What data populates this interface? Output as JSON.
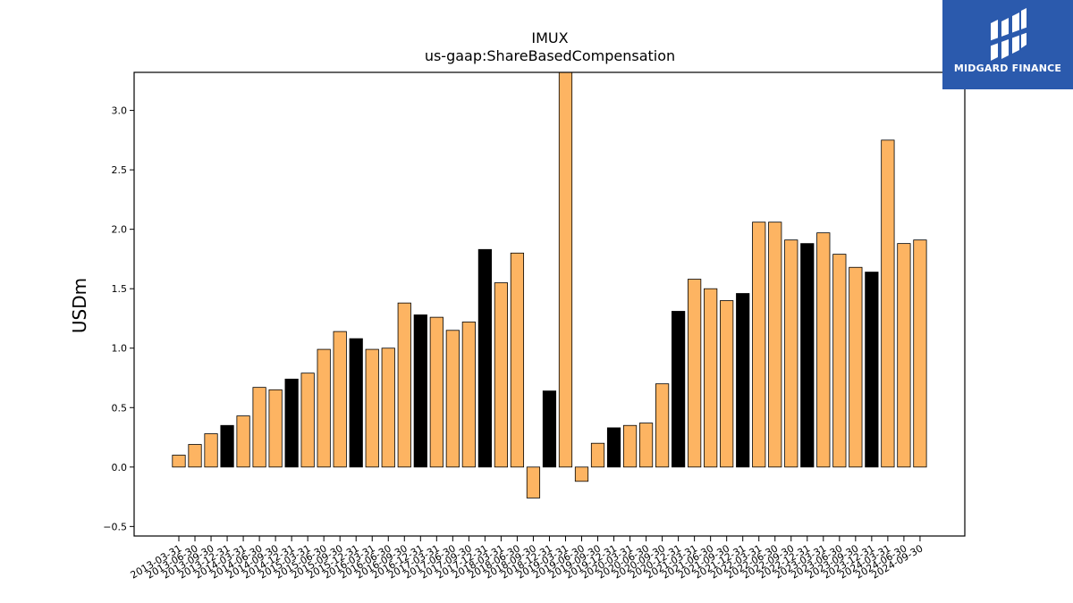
{
  "logo": {
    "text": "MIDGARD FINANCE",
    "background": "#2b5aad"
  },
  "colors": {
    "positive": "#fdb462",
    "highlight": "#000000",
    "edge": "#000000"
  },
  "chart_data": {
    "type": "bar",
    "title": "IMUX",
    "subtitle": "us-gaap:ShareBasedCompensation",
    "ylabel": "USDm",
    "ylim": [
      -0.58,
      3.32
    ],
    "yticks": [
      -0.5,
      0.0,
      0.5,
      1.0,
      1.5,
      2.0,
      2.5,
      3.0
    ],
    "ytick_labels": [
      "−0.5",
      "0.0",
      "0.5",
      "1.0",
      "1.5",
      "2.0",
      "2.5",
      "3.0"
    ],
    "categories": [
      "2013-03-31",
      "2013-06-30",
      "2013-09-30",
      "2013-12-31",
      "2014-03-31",
      "2014-06-30",
      "2014-09-30",
      "2014-12-31",
      "2015-03-31",
      "2015-06-30",
      "2015-09-30",
      "2015-12-31",
      "2016-03-31",
      "2016-06-30",
      "2016-09-30",
      "2016-12-31",
      "2017-03-31",
      "2017-06-30",
      "2017-09-30",
      "2017-12-31",
      "2018-03-31",
      "2018-06-30",
      "2018-09-30",
      "2018-12-31",
      "2019-03-31",
      "2019-06-30",
      "2019-09-30",
      "2019-12-31",
      "2020-03-31",
      "2020-06-30",
      "2020-09-30",
      "2020-12-31",
      "2021-03-31",
      "2021-06-30",
      "2021-09-30",
      "2021-12-31",
      "2022-03-31",
      "2022-06-30",
      "2022-09-30",
      "2022-12-31",
      "2023-03-31",
      "2023-06-30",
      "2023-09-30",
      "2023-12-31",
      "2024-03-31",
      "2024-06-30",
      "2024-09-30"
    ],
    "values": [
      0.1,
      0.19,
      0.28,
      0.35,
      0.43,
      0.67,
      0.65,
      0.74,
      0.79,
      0.99,
      1.14,
      1.08,
      0.99,
      1.0,
      1.38,
      1.28,
      1.26,
      1.15,
      1.22,
      1.83,
      1.55,
      1.8,
      -0.26,
      0.64,
      3.32,
      -0.12,
      0.2,
      0.33,
      0.35,
      0.37,
      0.7,
      1.31,
      1.58,
      1.5,
      1.4,
      1.46,
      2.06,
      2.06,
      1.91,
      1.88,
      1.97,
      1.79,
      1.68,
      1.64,
      2.75,
      1.88,
      1.91
    ],
    "highlighted": [
      false,
      false,
      false,
      true,
      false,
      false,
      false,
      true,
      false,
      false,
      false,
      true,
      false,
      false,
      false,
      true,
      false,
      false,
      false,
      true,
      false,
      false,
      false,
      true,
      false,
      false,
      false,
      true,
      false,
      false,
      false,
      true,
      false,
      false,
      false,
      true,
      false,
      false,
      false,
      true,
      false,
      false,
      false,
      true,
      false,
      false,
      false
    ],
    "grid": false,
    "legend": "none"
  }
}
